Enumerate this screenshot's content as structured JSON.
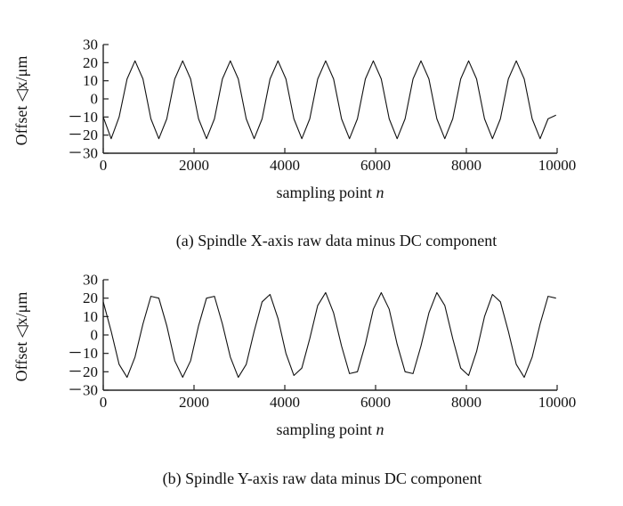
{
  "chart_data": [
    {
      "type": "line",
      "panel": "a",
      "caption": "(a) Spindle X-axis raw data minus DC component",
      "xlabel": "sampling point",
      "xlabel_var": "n",
      "ylabel": "Offset ◁x/μm",
      "xlim": [
        0,
        10000
      ],
      "ylim": [
        -30,
        30
      ],
      "x_ticks": [
        0,
        2000,
        4000,
        6000,
        8000,
        10000
      ],
      "x_tick_labels": [
        "0",
        "2000",
        "4000",
        "6000",
        "8000",
        "10000"
      ],
      "y_ticks": [
        30,
        20,
        10,
        0,
        -10,
        -20,
        -30
      ],
      "y_tick_labels": [
        "30",
        "20",
        "10",
        "0",
        "－10",
        "－20",
        "－30"
      ],
      "grid": false,
      "series": [
        {
          "x": [
            0,
            175,
            350,
            525,
            700,
            875,
            1050,
            1225,
            1400,
            1575,
            1750,
            1925,
            2100,
            2275,
            2450,
            2625,
            2800,
            2975,
            3150,
            3325,
            3500,
            3675,
            3850,
            4025,
            4200,
            4375,
            4550,
            4725,
            4900,
            5075,
            5250,
            5425,
            5600,
            5775,
            5950,
            6125,
            6300,
            6475,
            6650,
            6825,
            7000,
            7175,
            7350,
            7525,
            7700,
            7875,
            8050,
            8225,
            8400,
            8575,
            8750,
            8925,
            9100,
            9275,
            9450,
            9625,
            9800,
            9975
          ],
          "y": [
            -10,
            -22,
            -10,
            11,
            21,
            11,
            -11,
            -22,
            -11,
            11,
            21,
            11,
            -11,
            -22,
            -11,
            11,
            21,
            11,
            -11,
            -22,
            -11,
            11,
            21,
            11,
            -11,
            -22,
            -11,
            11,
            21,
            11,
            -11,
            -22,
            -11,
            11,
            21,
            11,
            -11,
            -22,
            -11,
            11,
            21,
            11,
            -11,
            -22,
            -11,
            11,
            21,
            11,
            -11,
            -22,
            -11,
            11,
            21,
            11,
            -11,
            -22,
            -11,
            -9
          ]
        }
      ]
    },
    {
      "type": "line",
      "panel": "b",
      "caption": "(b) Spindle Y-axis raw data minus DC component",
      "xlabel": "sampling point",
      "xlabel_var": "n",
      "ylabel": "Offset ◁x/μm",
      "xlim": [
        0,
        10000
      ],
      "ylim": [
        -30,
        30
      ],
      "x_ticks": [
        0,
        2000,
        4000,
        6000,
        8000,
        10000
      ],
      "x_tick_labels": [
        "0",
        "2000",
        "4000",
        "6000",
        "8000",
        "10000"
      ],
      "y_ticks": [
        30,
        20,
        10,
        0,
        -10,
        -20,
        -30
      ],
      "y_tick_labels": [
        "30",
        "20",
        "10",
        "0",
        "－10",
        "－20",
        "－30"
      ],
      "grid": false,
      "series": [
        {
          "x": [
            0,
            175,
            350,
            525,
            700,
            875,
            1050,
            1225,
            1400,
            1575,
            1750,
            1925,
            2100,
            2275,
            2450,
            2625,
            2800,
            2975,
            3150,
            3325,
            3500,
            3675,
            3850,
            4025,
            4200,
            4375,
            4550,
            4725,
            4900,
            5075,
            5250,
            5425,
            5600,
            5775,
            5950,
            6125,
            6300,
            6475,
            6650,
            6825,
            7000,
            7175,
            7350,
            7525,
            7700,
            7875,
            8050,
            8225,
            8400,
            8575,
            8750,
            8925,
            9100,
            9275,
            9450,
            9625,
            9800,
            9975
          ],
          "y": [
            18,
            2,
            -16,
            -23,
            -12,
            6,
            21,
            20,
            5,
            -14,
            -23,
            -14,
            5,
            20,
            21,
            6,
            -12,
            -23,
            -16,
            2,
            18,
            22,
            9,
            -10,
            -22,
            -18,
            -2,
            16,
            23,
            12,
            -6,
            -21,
            -20,
            -5,
            14,
            23,
            14,
            -5,
            -20,
            -21,
            -6,
            12,
            23,
            16,
            -2,
            -18,
            -22,
            -9,
            10,
            22,
            18,
            2,
            -16,
            -23,
            -12,
            6,
            21,
            20
          ]
        }
      ]
    }
  ]
}
